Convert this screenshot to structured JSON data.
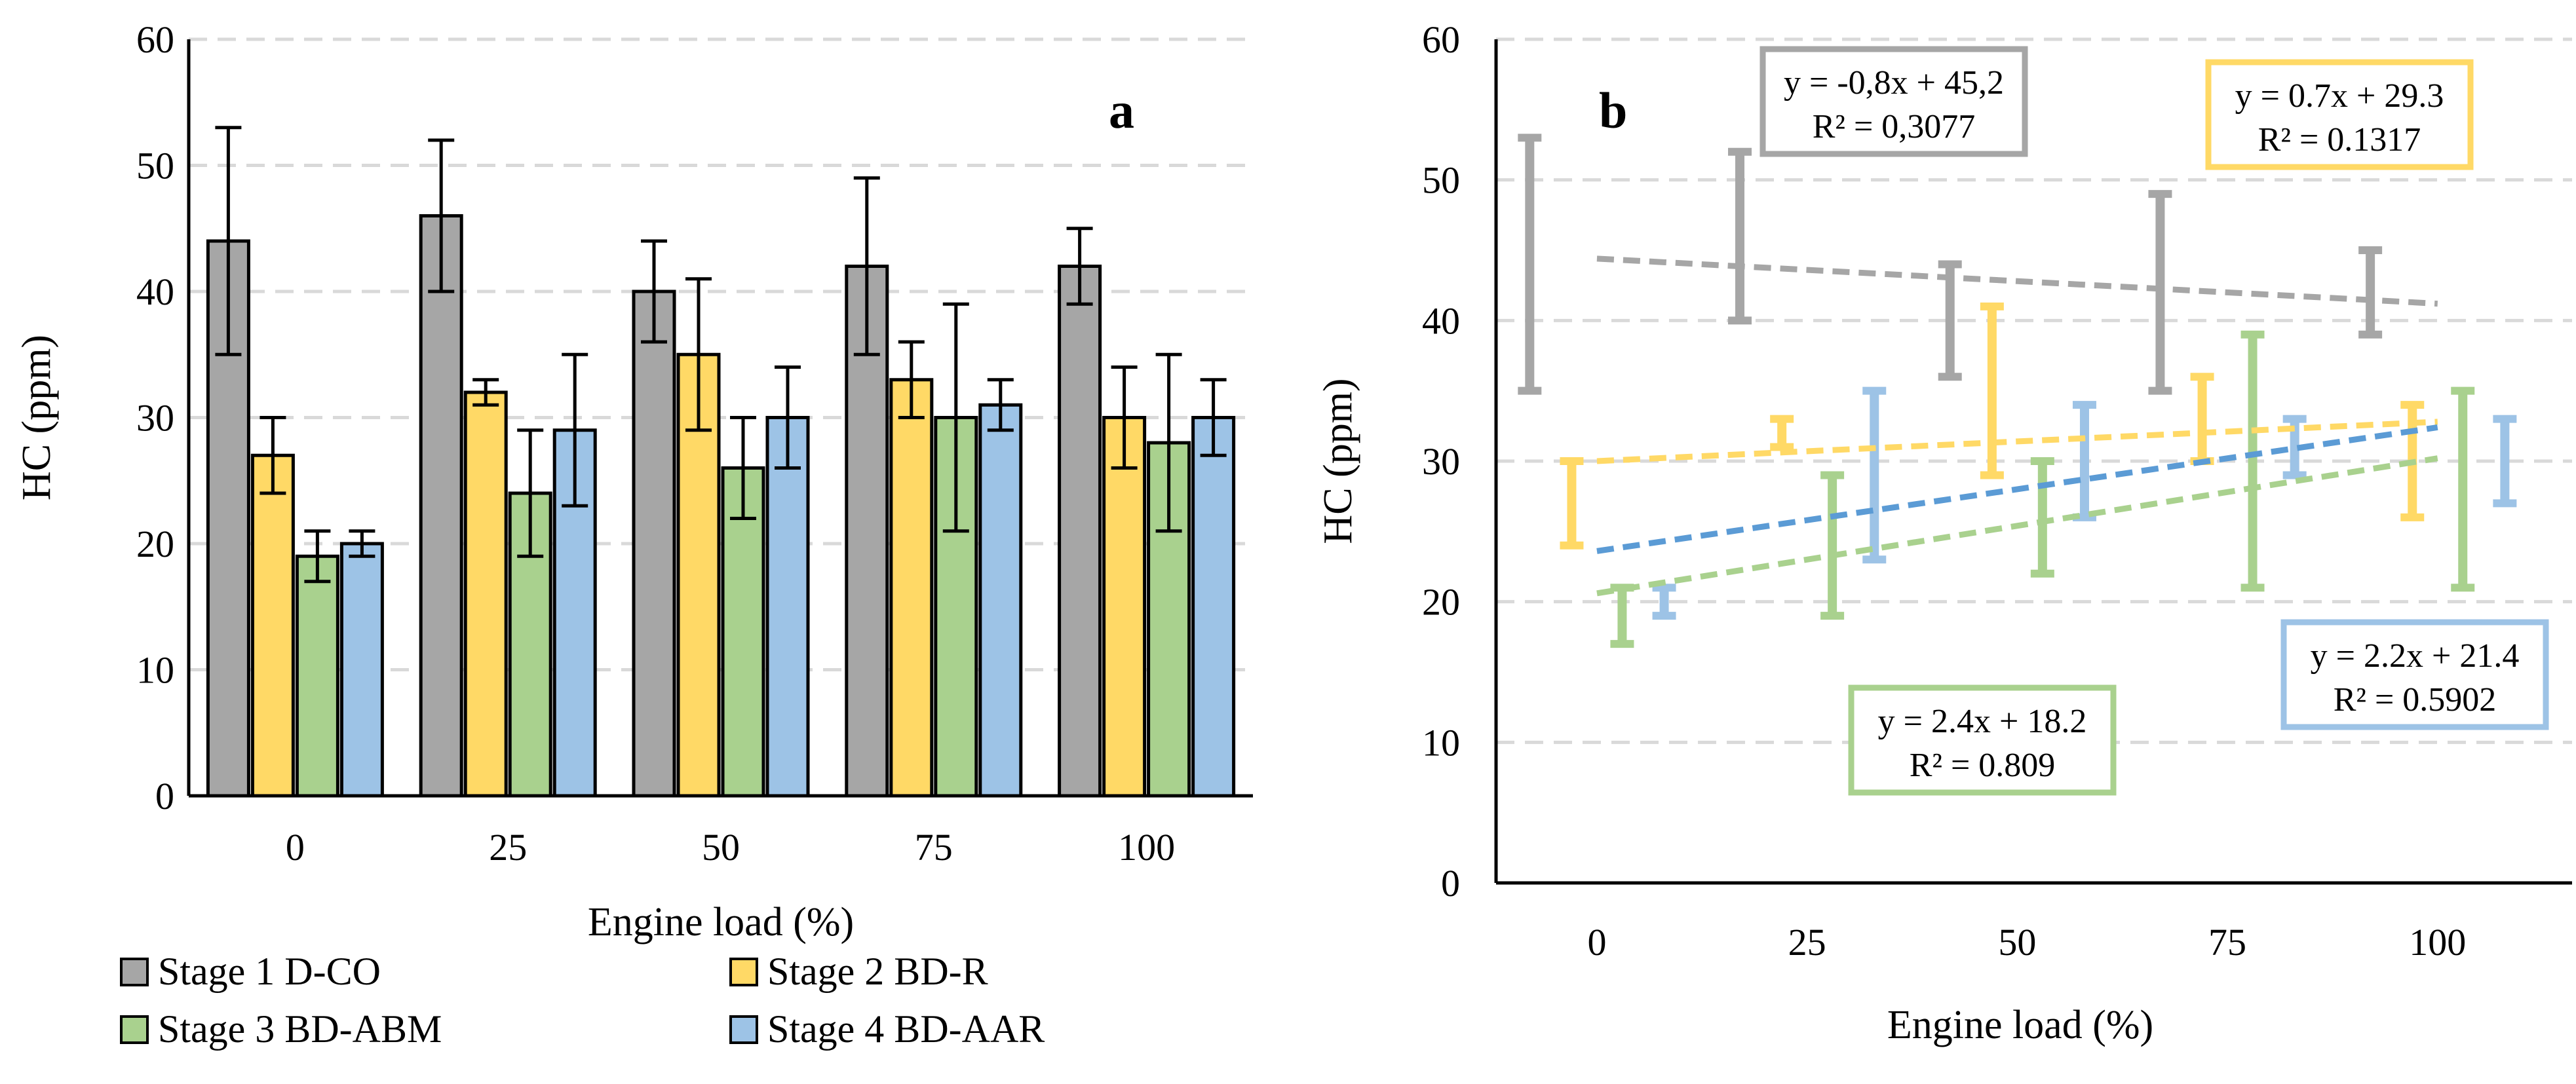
{
  "colors": {
    "stage1": "#a6a6a6",
    "stage2": "#ffd966",
    "stage3": "#a9d18e",
    "stage4": "#9dc3e6",
    "trend_stage1": "#a6a6a6",
    "trend_stage2": "#ffd966",
    "trend_stage3": "#a9d18e",
    "trend_stage4": "#5b9bd5",
    "grid": "#d9d9d9",
    "error_bar": "#000000"
  },
  "chart_data": [
    {
      "type": "bar",
      "panel_label": "a",
      "title": "",
      "xlabel": "Engine load (%)",
      "ylabel": "HC (ppm)",
      "ylim": [
        0,
        60
      ],
      "y_ticks": [
        0,
        10,
        20,
        30,
        40,
        50,
        60
      ],
      "grid": true,
      "legend_position": "bottom",
      "categories": [
        "0",
        "25",
        "50",
        "75",
        "100"
      ],
      "series": [
        {
          "name": "Stage 1 D-CO",
          "values": [
            44,
            46,
            40,
            42,
            42
          ],
          "err_low": [
            35,
            40,
            36,
            35,
            39
          ],
          "err_high": [
            53,
            52,
            44,
            49,
            45
          ]
        },
        {
          "name": "Stage 2 BD-R",
          "values": [
            27,
            32,
            35,
            33,
            30
          ],
          "err_low": [
            24,
            31,
            29,
            30,
            26
          ],
          "err_high": [
            30,
            33,
            41,
            36,
            34
          ]
        },
        {
          "name": "Stage 3 BD-ABM",
          "values": [
            19,
            24,
            26,
            30,
            28
          ],
          "err_low": [
            17,
            19,
            22,
            21,
            21
          ],
          "err_high": [
            21,
            29,
            30,
            39,
            35
          ]
        },
        {
          "name": "Stage 4 BD-AAR",
          "values": [
            20,
            29,
            30,
            31,
            30
          ],
          "err_low": [
            19,
            23,
            26,
            29,
            27
          ],
          "err_high": [
            21,
            35,
            34,
            33,
            33
          ]
        }
      ]
    },
    {
      "type": "scatter",
      "panel_label": "b",
      "title": "",
      "xlabel": "Engine load (%)",
      "ylabel": "HC (ppm)",
      "ylim": [
        0,
        60
      ],
      "xlim": [
        -12,
        116
      ],
      "y_ticks": [
        0,
        10,
        20,
        30,
        40,
        50,
        60
      ],
      "x_ticks": [
        0,
        25,
        50,
        75,
        100
      ],
      "grid": true,
      "series": [
        {
          "name": "Stage 1 D-CO",
          "x": [
            -8,
            17,
            42,
            67,
            92
          ],
          "err_low": [
            35,
            40,
            36,
            35,
            39
          ],
          "err_high": [
            53,
            52,
            44,
            49,
            45
          ],
          "trend": {
            "x": [
              0,
              100
            ],
            "y": [
              44.4,
              41.2
            ]
          },
          "equation": "y = -0,8x + 45,2",
          "r2": "R² = 0,3077"
        },
        {
          "name": "Stage 2 BD-R",
          "x": [
            -3,
            22,
            47,
            72,
            97
          ],
          "err_low": [
            24,
            31,
            29,
            30,
            26
          ],
          "err_high": [
            30,
            33,
            41,
            36,
            34
          ],
          "trend": {
            "x": [
              0,
              100
            ],
            "y": [
              30.0,
              32.8
            ]
          },
          "equation": "y = 0.7x + 29.3",
          "r2": "R² = 0.1317"
        },
        {
          "name": "Stage 3 BD-ABM",
          "x": [
            3,
            28,
            53,
            78,
            103
          ],
          "err_low": [
            17,
            19,
            22,
            21,
            21
          ],
          "err_high": [
            21,
            29,
            30,
            39,
            35
          ],
          "trend": {
            "x": [
              0,
              100
            ],
            "y": [
              20.6,
              30.2
            ]
          },
          "equation": "y = 2.4x + 18.2",
          "r2": "R² = 0.809"
        },
        {
          "name": "Stage 4 BD-AAR",
          "x": [
            8,
            33,
            58,
            83,
            108
          ],
          "err_low": [
            19,
            23,
            26,
            29,
            27
          ],
          "err_high": [
            21,
            35,
            34,
            33,
            33
          ],
          "trend": {
            "x": [
              0,
              100
            ],
            "y": [
              23.6,
              32.4
            ]
          },
          "equation": "y = 2.2x + 21.4",
          "r2": "R² = 0.5902"
        }
      ]
    }
  ]
}
